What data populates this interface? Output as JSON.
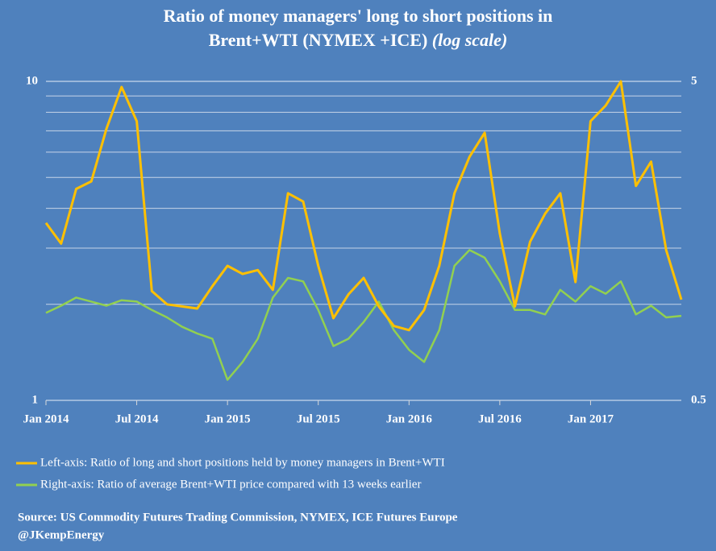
{
  "chart_data": {
    "type": "line",
    "title": [
      "Ratio of  money managers' long to short positions in",
      "Brent+WTI (NYMEX +ICE)"
    ],
    "title_note": "(log scale)",
    "log_scale": true,
    "x": [
      "2014-01",
      "2014-02",
      "2014-03",
      "2014-04",
      "2014-05",
      "2014-06",
      "2014-07",
      "2014-08",
      "2014-09",
      "2014-10",
      "2014-11",
      "2014-12",
      "2015-01",
      "2015-02",
      "2015-03",
      "2015-04",
      "2015-05",
      "2015-06",
      "2015-07",
      "2015-08",
      "2015-09",
      "2015-10",
      "2015-11",
      "2015-12",
      "2016-01",
      "2016-02",
      "2016-03",
      "2016-04",
      "2016-05",
      "2016-06",
      "2016-07",
      "2016-08",
      "2016-09",
      "2016-10",
      "2016-11",
      "2016-12",
      "2017-01",
      "2017-02",
      "2017-03",
      "2017-04",
      "2017-05",
      "2017-06",
      "2017-07"
    ],
    "xlim": [
      "2014-01",
      "2017-07"
    ],
    "xticks": [
      {
        "value": "2014-01",
        "label": "Jan 2014"
      },
      {
        "value": "2014-07",
        "label": "Jul 2014"
      },
      {
        "value": "2015-01",
        "label": "Jan 2015"
      },
      {
        "value": "2015-07",
        "label": "Jul 2015"
      },
      {
        "value": "2016-01",
        "label": "Jan 2016"
      },
      {
        "value": "2016-07",
        "label": "Jul 2016"
      },
      {
        "value": "2017-01",
        "label": "Jan 2017"
      }
    ],
    "ylim": [
      1,
      10
    ],
    "yticks": [
      1,
      10
    ],
    "y_minor_grid": [
      2,
      3,
      4,
      5,
      6,
      7,
      8,
      9
    ],
    "y2lim": [
      0.5,
      5
    ],
    "y2ticks": [
      0.5,
      5
    ],
    "grid": true,
    "series": [
      {
        "name": "Left-axis: Ratio of  long and short positions held by money managers in Brent+WTI",
        "color": "#ffc000",
        "values": [
          3.6,
          3.1,
          4.6,
          4.86,
          7.1,
          9.6,
          7.5,
          2.2,
          2.0,
          1.97,
          1.94,
          2.28,
          2.64,
          2.49,
          2.56,
          2.22,
          4.46,
          4.2,
          2.64,
          1.81,
          2.15,
          2.42,
          1.97,
          1.71,
          1.66,
          1.92,
          2.64,
          4.46,
          5.8,
          6.9,
          3.33,
          1.97,
          3.14,
          3.85,
          4.46,
          2.35,
          7.5,
          8.4,
          10,
          4.7,
          5.6,
          2.96,
          2.07
        ]
      },
      {
        "name": "Right-axis: Ratio of  average Brent+WTI price compared with 13 weeks earlier",
        "color": "#92d050",
        "axis": "y2",
        "values": [
          0.94,
          0.99,
          1.05,
          1.02,
          0.99,
          1.03,
          1.02,
          0.96,
          0.91,
          0.85,
          0.81,
          0.78,
          0.58,
          0.66,
          0.78,
          1.05,
          1.21,
          1.18,
          0.96,
          0.74,
          0.78,
          0.88,
          1.02,
          0.83,
          0.72,
          0.66,
          0.83,
          1.32,
          1.48,
          1.4,
          1.18,
          0.96,
          0.96,
          0.93,
          1.11,
          1.02,
          1.14,
          1.08,
          1.18,
          0.93,
          0.99,
          0.91,
          0.92
        ]
      }
    ],
    "source": [
      "Source: US Commodity Futures Trading Commission,  NYMEX, ICE Futures Europe",
      "@JKempEnergy"
    ]
  }
}
